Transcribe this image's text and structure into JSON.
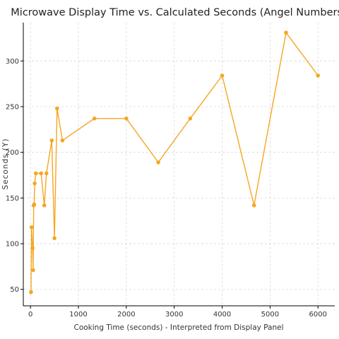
{
  "chart_data": {
    "type": "line",
    "title": "Microwave Display Time vs. Calculated Seconds (Angel Numbers)",
    "xlabel": "Cooking Time (seconds) - Interpreted from Display Panel",
    "ylabel": "Seconds (Y)",
    "xlim": [
      -150,
      6350
    ],
    "ylim": [
      32,
      342
    ],
    "xticks": [
      0,
      1000,
      2000,
      3000,
      4000,
      5000,
      6000
    ],
    "yticks": [
      50,
      100,
      150,
      200,
      250,
      300
    ],
    "grid": true,
    "color": "#f5a623",
    "series": [
      {
        "x": [
          11,
          22,
          44,
          55,
          66,
          77,
          88,
          111,
          222,
          288,
          333,
          444,
          500,
          555,
          666,
          1333,
          2000,
          2666,
          3333,
          4000,
          4666,
          5333,
          6000
        ],
        "y": [
          47,
          118,
          95,
          71,
          142,
          143,
          166,
          177,
          177,
          142,
          177,
          213,
          106,
          248,
          213,
          237,
          237,
          189,
          237,
          284,
          142,
          331,
          284
        ]
      }
    ]
  }
}
